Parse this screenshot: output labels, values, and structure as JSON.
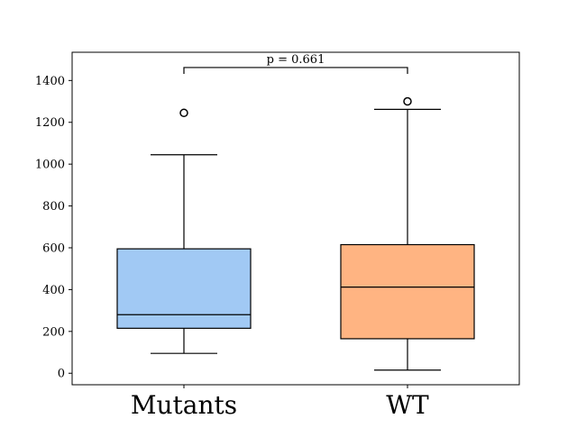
{
  "chart_data": {
    "type": "box",
    "title": "",
    "xlabel": "",
    "ylabel": "",
    "ylim": [
      -55,
      1535
    ],
    "yticks": [
      0,
      200,
      400,
      600,
      800,
      1000,
      1200,
      1400
    ],
    "ytick_labels": [
      "0",
      "200",
      "400",
      "600",
      "800",
      "1000",
      "1200",
      "1400"
    ],
    "grid": false,
    "legend": "none",
    "categories": [
      "Mutants",
      "WT"
    ],
    "series": [
      {
        "category": "Mutants",
        "whisker_low": 95,
        "q1": 215,
        "median": 280,
        "q3": 595,
        "whisker_high": 1045,
        "outliers": [
          1245
        ],
        "color": "#a1c9f4"
      },
      {
        "category": "WT",
        "whisker_low": 15,
        "q1": 165,
        "median": 412,
        "q3": 615,
        "whisker_high": 1262,
        "outliers": [
          1300
        ],
        "color": "#ffb482"
      }
    ],
    "annotation": {
      "text": "p = 0.661",
      "between": [
        "Mutants",
        "WT"
      ],
      "y": 1462
    }
  }
}
